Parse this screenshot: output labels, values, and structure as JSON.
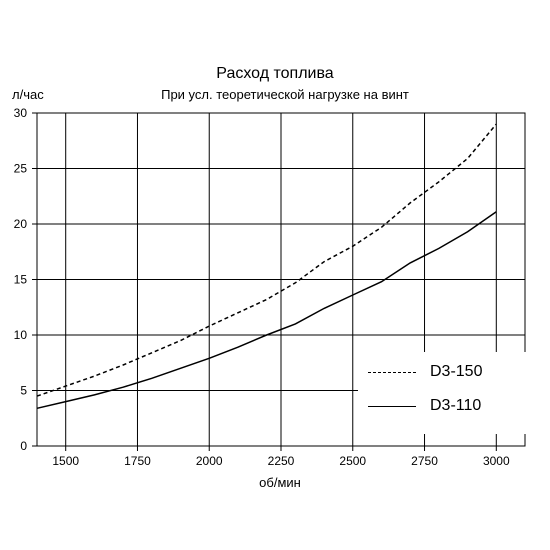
{
  "chart_data": {
    "type": "line",
    "title": "Расход топлива",
    "subtitle": "При усл. теоретической нагрузке на винт",
    "xlabel": "об/мин",
    "ylabel": "л/час",
    "xlim": [
      1400,
      3100
    ],
    "ylim": [
      0,
      30
    ],
    "xticks": [
      1500,
      1750,
      2000,
      2250,
      2500,
      2750,
      3000
    ],
    "yticks": [
      0,
      5,
      10,
      15,
      20,
      25,
      30
    ],
    "grid": true,
    "legend_position": "bottom-right",
    "series": [
      {
        "name": "D3-150",
        "style": "dashed",
        "x": [
          1400,
          1500,
          1600,
          1700,
          1800,
          1900,
          2000,
          2100,
          2200,
          2300,
          2400,
          2500,
          2600,
          2700,
          2800,
          2900,
          3000
        ],
        "y": [
          4.5,
          5.4,
          6.3,
          7.3,
          8.4,
          9.5,
          10.8,
          12.0,
          13.2,
          14.7,
          16.6,
          18.0,
          19.7,
          21.9,
          23.8,
          25.9,
          29.0
        ]
      },
      {
        "name": "D3-110",
        "style": "solid",
        "x": [
          1400,
          1500,
          1600,
          1700,
          1800,
          1900,
          2000,
          2100,
          2200,
          2300,
          2400,
          2500,
          2600,
          2700,
          2800,
          2900,
          3000
        ],
        "y": [
          3.4,
          4.0,
          4.6,
          5.3,
          6.1,
          7.0,
          7.9,
          8.9,
          10.0,
          11.0,
          12.4,
          13.6,
          14.8,
          16.5,
          17.8,
          19.3,
          21.1
        ]
      }
    ]
  }
}
